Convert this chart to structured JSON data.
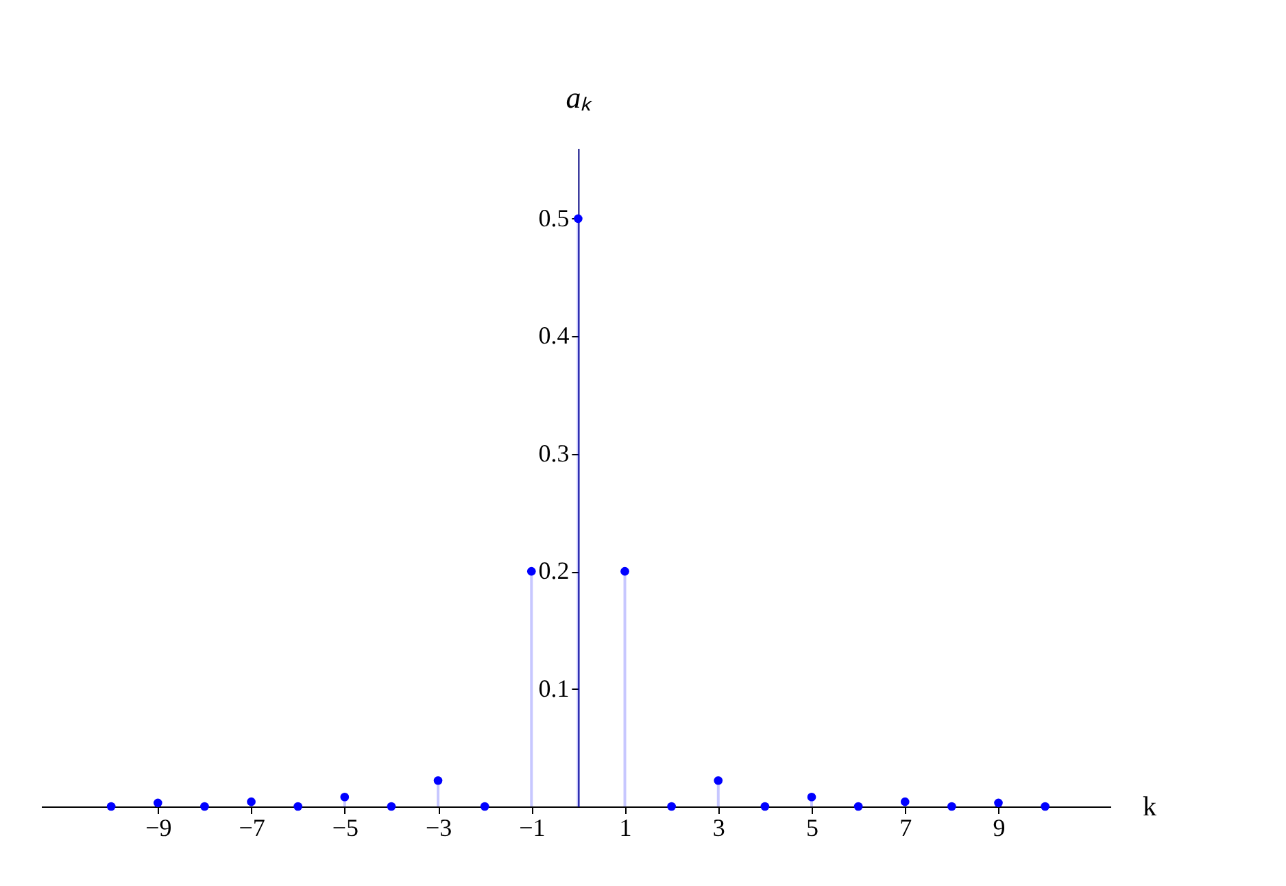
{
  "chart_data": {
    "type": "lollipop",
    "xlabel": "k",
    "ylabel": "aₖ",
    "x": [
      -10,
      -9,
      -8,
      -7,
      -6,
      -5,
      -4,
      -3,
      -2,
      -1,
      0,
      1,
      2,
      3,
      4,
      5,
      6,
      7,
      8,
      9,
      10
    ],
    "series": [
      {
        "color": "#0000ff",
        "values": [
          0,
          0.003,
          0,
          0.004,
          0,
          0.008,
          0,
          0.022,
          0,
          0.2,
          0.5,
          0.2,
          0,
          0.022,
          0,
          0.008,
          0,
          0.004,
          0,
          0.003,
          0
        ]
      }
    ],
    "xlim": [
      -11.5,
      11.4
    ],
    "ylim": [
      0,
      0.56
    ],
    "xticks": [
      -9,
      -7,
      -5,
      -3,
      -1,
      1,
      3,
      5,
      7,
      9
    ],
    "yticks": [
      0.1,
      0.2,
      0.3,
      0.4,
      0.5
    ],
    "grid": false,
    "marker": "circle"
  }
}
